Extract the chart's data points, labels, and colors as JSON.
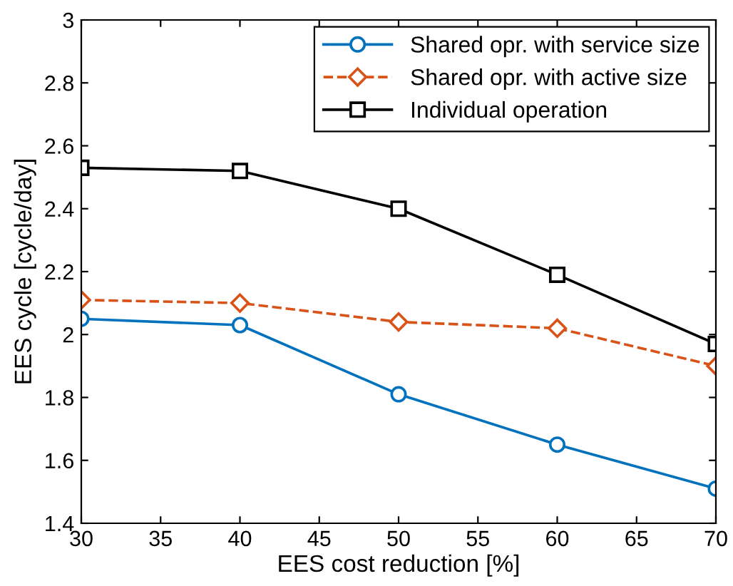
{
  "chart_data": {
    "type": "line",
    "xlabel": "EES cost reduction [%]",
    "ylabel": "EES cycle [cycle/day]",
    "x": [
      30,
      40,
      50,
      60,
      70
    ],
    "series": [
      {
        "name": "Shared opr. with service size",
        "color": "#0072bd",
        "marker": "circle",
        "line_style": "solid",
        "values": [
          2.05,
          2.03,
          1.81,
          1.65,
          1.51
        ]
      },
      {
        "name": "Shared opr. with active size",
        "color": "#d95319",
        "marker": "diamond",
        "line_style": "dashed",
        "values": [
          2.11,
          2.1,
          2.04,
          2.02,
          1.9
        ]
      },
      {
        "name": "Individual operation",
        "color": "#000000",
        "marker": "square",
        "line_style": "solid",
        "values": [
          2.53,
          2.52,
          2.4,
          2.19,
          1.97
        ]
      }
    ],
    "xlim": [
      30,
      70
    ],
    "xticks": [
      30,
      35,
      40,
      45,
      50,
      55,
      60,
      65,
      70
    ],
    "ylim": [
      1.4,
      3
    ],
    "yticks": [
      1.4,
      1.6,
      1.8,
      2,
      2.2,
      2.4,
      2.6,
      2.8,
      3
    ],
    "grid": false,
    "legend": "top right"
  }
}
